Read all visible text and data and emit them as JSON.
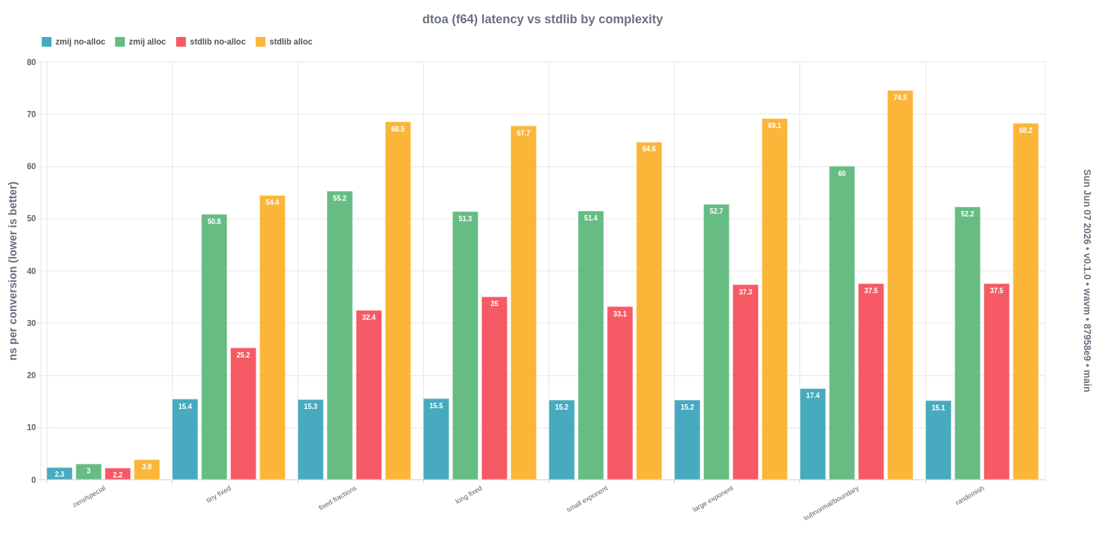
{
  "chart_data": {
    "type": "bar",
    "title": "dtoa (f64) latency vs stdlib by complexity",
    "ylabel": "ns per conversion (lower is better)",
    "annotations": [
      "Sun Jun 07 2026 • v0.1.0 • wavm • 87958e9 • main"
    ],
    "categories": [
      "zero/special",
      "tiny fixed",
      "fixed fractions",
      "long fixed",
      "small exponent",
      "large exponent",
      "subnormal/boundary",
      "randomish"
    ],
    "series": [
      {
        "name": "zmij no-alloc",
        "color": "#3ea6bb",
        "values": [
          2.3,
          15.4,
          15.3,
          15.5,
          15.2,
          15.2,
          17.4,
          15.1
        ]
      },
      {
        "name": "zmij alloc",
        "color": "#5eb97c",
        "values": [
          3,
          50.8,
          55.2,
          51.3,
          51.4,
          52.7,
          60,
          52.2
        ]
      },
      {
        "name": "stdlib no-alloc",
        "color": "#f5525d",
        "values": [
          2.2,
          25.2,
          32.4,
          35,
          33.1,
          37.3,
          37.5,
          37.5
        ]
      },
      {
        "name": "stdlib alloc",
        "color": "#fbb32f",
        "values": [
          3.8,
          54.4,
          68.5,
          67.7,
          64.6,
          69.1,
          74.5,
          68.2
        ]
      }
    ],
    "ylim": [
      0,
      80
    ],
    "yticks": [
      0,
      10,
      20,
      30,
      40,
      50,
      60,
      70,
      80
    ],
    "grid": true,
    "legend": "top",
    "data_labels": true
  }
}
